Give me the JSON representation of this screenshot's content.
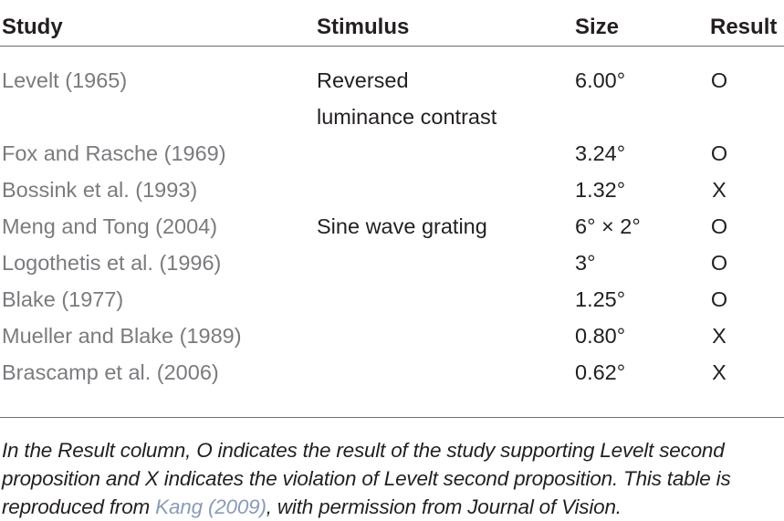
{
  "table": {
    "headers": {
      "study": "Study",
      "stimulus": "Stimulus",
      "size": "Size",
      "result": "Result"
    },
    "rows": [
      {
        "study": "Levelt (1965)",
        "stimulus_line1": "Reversed",
        "stimulus_line2": "luminance contrast",
        "size": "6.00°",
        "result": "O"
      },
      {
        "study": "Fox and Rasche (1969)",
        "stimulus": "",
        "size": "3.24°",
        "result": "O"
      },
      {
        "study": "Bossink et al. (1993)",
        "stimulus": "",
        "size": "1.32°",
        "result": "X"
      },
      {
        "study": "Meng and Tong (2004)",
        "stimulus": "Sine wave grating",
        "size": "6° × 2°",
        "result": "O"
      },
      {
        "study": "Logothetis et al. (1996)",
        "stimulus": "",
        "size": "3°",
        "result": "O"
      },
      {
        "study": "Blake (1977)",
        "stimulus": "",
        "size": "1.25°",
        "result": "O"
      },
      {
        "study": "Mueller and Blake (1989)",
        "stimulus": "",
        "size": "0.80°",
        "result": "X"
      },
      {
        "study": "Brascamp et al. (2006)",
        "stimulus": "",
        "size": "0.62°",
        "result": "X"
      }
    ]
  },
  "footnote": {
    "text_before": "In the Result column, O indicates the result of the study supporting Levelt second proposition and X indicates the violation of Levelt second proposition. This table is reproduced from ",
    "reference": "Kang (2009)",
    "text_after": ", with permission from Journal of Vision."
  },
  "colors": {
    "text": "#231f20",
    "study_text": "#7a7b7e",
    "rule": "#6d6e71",
    "link": "#8a9bb8"
  }
}
